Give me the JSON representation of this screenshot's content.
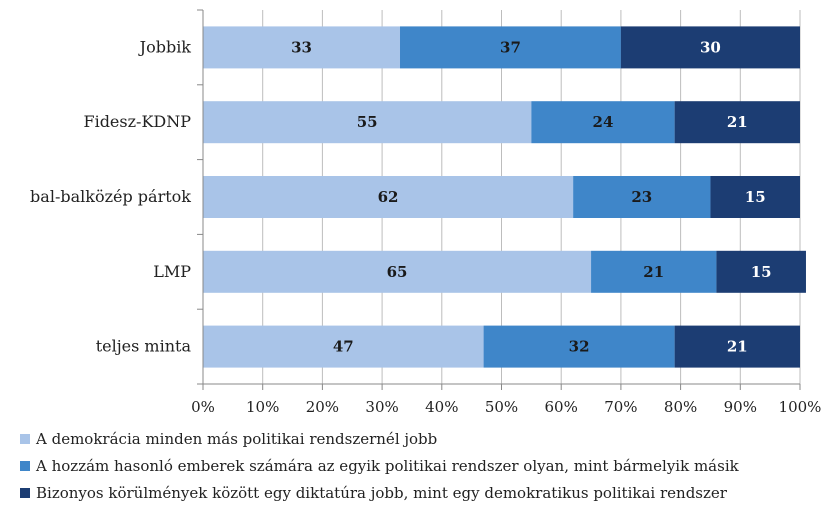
{
  "chart_data": {
    "type": "bar",
    "orientation": "horizontal",
    "stacked": true,
    "categories": [
      "Jobbik",
      "Fidesz-KDNP",
      "bal-balközép pártok",
      "LMP",
      "teljes minta"
    ],
    "series": [
      {
        "name": "A demokrácia minden más politikai rendszernél jobb",
        "values": [
          33,
          55,
          62,
          65,
          47
        ],
        "color": "#a9c4e8"
      },
      {
        "name": "A hozzám hasonló emberek számára az egyik politikai rendszer olyan, mint bármelyik másik",
        "values": [
          37,
          24,
          23,
          21,
          32
        ],
        "color": "#3f86c9"
      },
      {
        "name": "Bizonyos körülmények között egy diktatúra jobb, mint egy demokratikus politikai rendszer",
        "values": [
          30,
          21,
          15,
          15,
          21
        ],
        "color": "#1c3d73"
      }
    ],
    "xlim": [
      0,
      100
    ],
    "x_ticks": [
      "0%",
      "10%",
      "20%",
      "30%",
      "40%",
      "50%",
      "60%",
      "70%",
      "80%",
      "90%",
      "100%"
    ],
    "grid": true,
    "legend_position": "bottom"
  }
}
